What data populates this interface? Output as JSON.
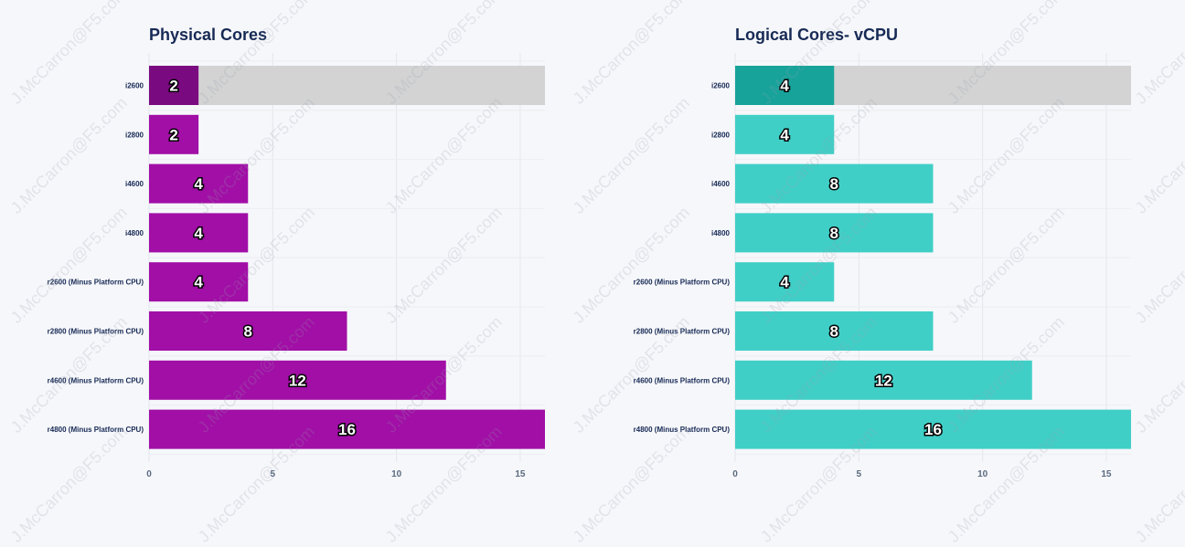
{
  "watermark_text": "J.McCarron@F5.com",
  "chart_data": [
    {
      "type": "bar",
      "orientation": "horizontal",
      "title": "Physical Cores",
      "categories": [
        "i2600",
        "i2800",
        "i4600",
        "i4800",
        "r2600 (Minus Platform CPU)",
        "r2800 (Minus Platform CPU)",
        "r4600 (Minus Platform CPU)",
        "r4800 (Minus Platform CPU)"
      ],
      "values": [
        2,
        2,
        4,
        4,
        4,
        8,
        12,
        16
      ],
      "highlight_track_index": 0,
      "xlim": [
        0,
        16
      ],
      "xticks": [
        0,
        5,
        10,
        15
      ],
      "grid": true,
      "colors": {
        "bar": "#a10fa6",
        "highlight": "#7a0a80",
        "track": "#d3d3d3"
      }
    },
    {
      "type": "bar",
      "orientation": "horizontal",
      "title": "Logical Cores- vCPU",
      "categories": [
        "i2600",
        "i2800",
        "i4600",
        "i4800",
        "r2600 (Minus Platform CPU)",
        "r2800 (Minus Platform CPU)",
        "r4600 (Minus Platform CPU)",
        "r4800 (Minus Platform CPU)"
      ],
      "values": [
        4,
        4,
        8,
        8,
        4,
        8,
        12,
        16
      ],
      "highlight_track_index": 0,
      "xlim": [
        0,
        16
      ],
      "xticks": [
        0,
        5,
        10,
        15
      ],
      "grid": true,
      "colors": {
        "bar": "#40cfc7",
        "highlight": "#17a39a",
        "track": "#d3d3d3"
      }
    }
  ]
}
